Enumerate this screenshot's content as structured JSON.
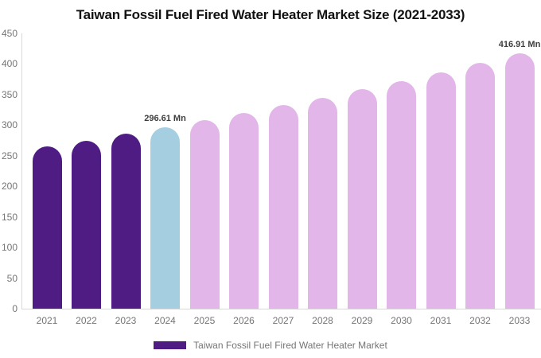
{
  "chart_data": {
    "type": "bar",
    "title": "Taiwan Fossil Fuel Fired Water Heater Market Size (2021-2033)",
    "categories": [
      "2021",
      "2022",
      "2023",
      "2024",
      "2025",
      "2026",
      "2027",
      "2028",
      "2029",
      "2030",
      "2031",
      "2032",
      "2033"
    ],
    "values": [
      264.8,
      275.0,
      285.6,
      296.61,
      308.1,
      320.0,
      332.3,
      345.1,
      358.5,
      372.3,
      386.7,
      401.6,
      416.91
    ],
    "value_unit": "Mn",
    "labeled_points": [
      {
        "category": "2024",
        "label": "296.61 Mn"
      },
      {
        "category": "2033",
        "label": "416.91 Mn"
      }
    ],
    "xlabel": "",
    "ylabel": "",
    "ylim": [
      0,
      450
    ],
    "yticks": [
      0,
      50,
      100,
      150,
      200,
      250,
      300,
      350,
      400,
      450
    ],
    "grid": "off",
    "legend_position": "bottom",
    "color_roles": [
      "historical",
      "historical",
      "historical",
      "current",
      "forecast",
      "forecast",
      "forecast",
      "forecast",
      "forecast",
      "forecast",
      "forecast",
      "forecast",
      "forecast"
    ],
    "bar_colors": {
      "historical": "#4f1c84",
      "current": "#a5cee1",
      "forecast": "#e3b6e9"
    }
  },
  "legend": {
    "label": "Taiwan Fossil Fuel Fired Water Heater Market",
    "swatch_color": "#4f1c84"
  },
  "colors": {
    "title_text": "#121212",
    "axis_line": "#d8d8d8",
    "axis_text": "#757575",
    "data_label_text": "#3d3d3d",
    "background": "#ffffff"
  }
}
